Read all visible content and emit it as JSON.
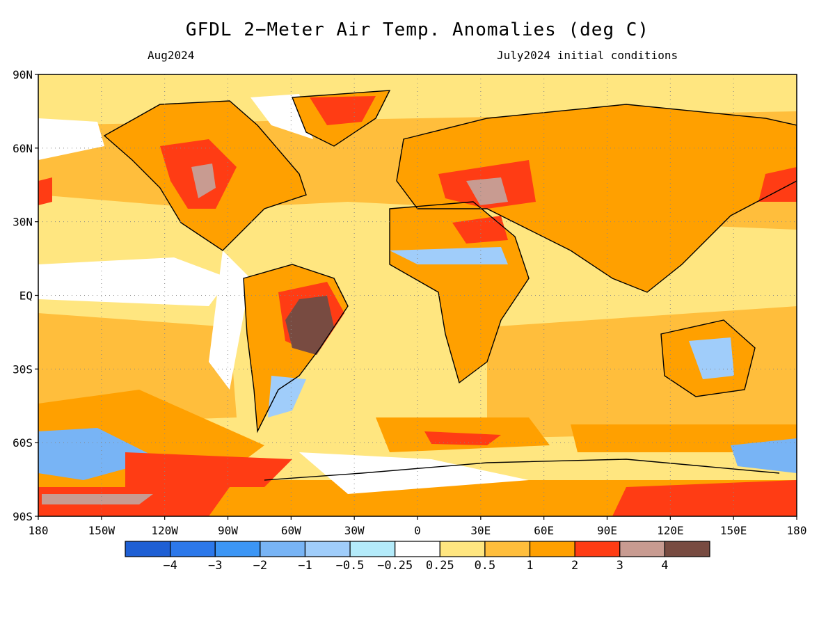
{
  "title": "GFDL 2−Meter Air Temp. Anomalies (deg C)",
  "subtitle_left": "Aug2024",
  "subtitle_right": "July2024 initial conditions",
  "map": {
    "lat_labels": [
      "90N",
      "60N",
      "30N",
      "EQ",
      "30S",
      "60S",
      "90S"
    ],
    "lon_labels": [
      "180",
      "150W",
      "120W",
      "90W",
      "60W",
      "30W",
      "0",
      "30E",
      "60E",
      "90E",
      "120E",
      "150E",
      "180"
    ],
    "background_color": "#ffe680"
  },
  "colorbar": {
    "colors": [
      "#1e5fd4",
      "#2c78ea",
      "#3c96f5",
      "#78b4f5",
      "#a0cdfa",
      "#b4ebfa",
      "#ffffff",
      "#ffe680",
      "#ffbe3c",
      "#ffa000",
      "#ff3c14",
      "#c89b91",
      "#784b41"
    ],
    "labels": [
      "−4",
      "−3",
      "−2",
      "−1",
      "−0.5",
      "−0.25",
      "0.25",
      "0.5",
      "1",
      "2",
      "3",
      "4"
    ]
  },
  "palette": {
    "land": "#ffa000",
    "warm": "#ff3c14",
    "hot": "#c89b91",
    "extreme": "#784b41",
    "cool": "#a0cdfa",
    "cold": "#78b4f5",
    "neutral": "#ffffff",
    "mild": "#ffbe3c",
    "pale": "#ffe680"
  }
}
